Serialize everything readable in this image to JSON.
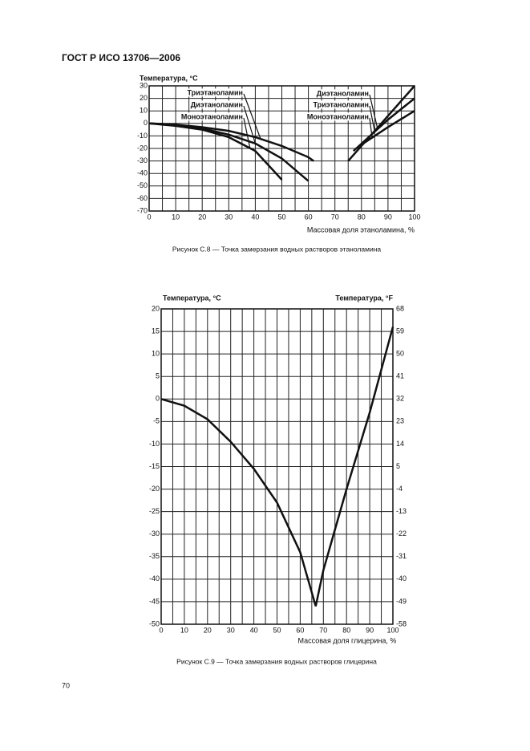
{
  "header": "ГОСТ Р ИСО 13706—2006",
  "page_number": "70",
  "chart_data": [
    {
      "type": "line",
      "y_label": "Температура, °С",
      "x_label": "Массовая доля этаноламина, %",
      "caption": "Рисунок С.8 — Точка замерзания водных растворов этаноламина",
      "xlim": [
        0,
        100
      ],
      "xticks": [
        0,
        10,
        20,
        30,
        40,
        50,
        60,
        70,
        80,
        90,
        100
      ],
      "x_grid_step": 5,
      "ylim": [
        -70,
        30
      ],
      "yticks": [
        30,
        20,
        10,
        0,
        -10,
        -20,
        -30,
        -40,
        -50,
        -60,
        -70
      ],
      "grid": true,
      "series": [
        {
          "name": "Моноэтаноламин",
          "color": "#111111",
          "x": [
            0,
            10,
            20,
            30,
            40,
            50,
            65,
            80,
            90,
            100
          ],
          "values": [
            0,
            -2,
            -5,
            -11,
            -22,
            -45,
            null,
            -17,
            -3,
            10
          ]
        },
        {
          "name": "Диэтаноламин",
          "color": "#111111",
          "x": [
            0,
            10,
            20,
            30,
            40,
            50,
            60,
            68,
            75,
            90,
            100
          ],
          "values": [
            0,
            -1,
            -4,
            -9,
            -16,
            -28,
            -46,
            null,
            -30,
            6,
            30
          ]
        },
        {
          "name": "Триэтаноламин",
          "color": "#111111",
          "x": [
            0,
            10,
            20,
            30,
            40,
            50,
            60,
            62,
            70,
            77,
            90,
            100
          ],
          "values": [
            0,
            -1,
            -3,
            -6,
            -11,
            -18,
            -27,
            -30,
            null,
            -22,
            3,
            20
          ]
        }
      ]
    },
    {
      "type": "line",
      "y_label": "Температура, °С",
      "y2_label": "Температура, °F",
      "x_label": "Массовая доля глицерина, %",
      "caption": "Рисунок С.9 — Точка замерзания водных растворов глицерина",
      "xlim": [
        0,
        100
      ],
      "xticks": [
        0,
        10,
        20,
        30,
        40,
        50,
        60,
        70,
        80,
        90,
        100
      ],
      "x_grid_step": 5,
      "ylim": [
        -50,
        20
      ],
      "yticks": [
        20,
        15,
        10,
        5,
        0,
        -5,
        -10,
        -15,
        -20,
        -25,
        -30,
        -35,
        -40,
        -45,
        -50
      ],
      "y2lim": [
        -58,
        68
      ],
      "y2ticks": [
        68,
        59,
        50,
        41,
        32,
        23,
        14,
        5,
        -4,
        -13,
        -22,
        -31,
        -40,
        -49,
        -58
      ],
      "grid": true,
      "series": [
        {
          "name": null,
          "color": "#111111",
          "x": [
            0,
            10,
            20,
            30,
            40,
            50,
            60,
            66.7,
            70,
            80,
            90,
            100
          ],
          "values": [
            0,
            -1.5,
            -4.5,
            -9.5,
            -15.5,
            -23,
            -34,
            -46,
            -38,
            -20,
            -3,
            16
          ]
        }
      ]
    }
  ]
}
